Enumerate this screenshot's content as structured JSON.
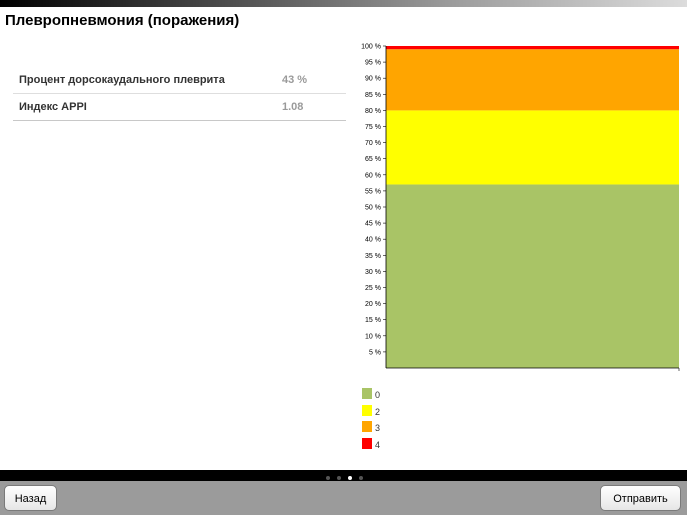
{
  "header": {
    "title": "Плевропневмония (поражения)"
  },
  "stats": [
    {
      "label": "Процент дорсокаудального плеврита",
      "value": "43 %"
    },
    {
      "label": "Индекс APPI",
      "value": "1.08"
    }
  ],
  "chart_data": {
    "type": "bar",
    "stacked": true,
    "categories": [
      ""
    ],
    "y_ticks": [
      "5 %",
      "10 %",
      "15 %",
      "20 %",
      "25 %",
      "30 %",
      "35 %",
      "40 %",
      "45 %",
      "50 %",
      "55 %",
      "60 %",
      "65 %",
      "70 %",
      "75 %",
      "80 %",
      "85 %",
      "90 %",
      "95 %",
      "100 %"
    ],
    "ylim": [
      0,
      100
    ],
    "series": [
      {
        "name": "0",
        "values": [
          57
        ],
        "color": "#a9c466"
      },
      {
        "name": "2",
        "values": [
          23
        ],
        "color": "#ffff00"
      },
      {
        "name": "3",
        "values": [
          19
        ],
        "color": "#ffa500"
      },
      {
        "name": "4",
        "values": [
          1
        ],
        "color": "#ff0000"
      }
    ],
    "legend_position": "bottom-left"
  },
  "pager": {
    "count": 4,
    "active": 2
  },
  "toolbar": {
    "back_label": "Назад",
    "send_label": "Отправить"
  }
}
